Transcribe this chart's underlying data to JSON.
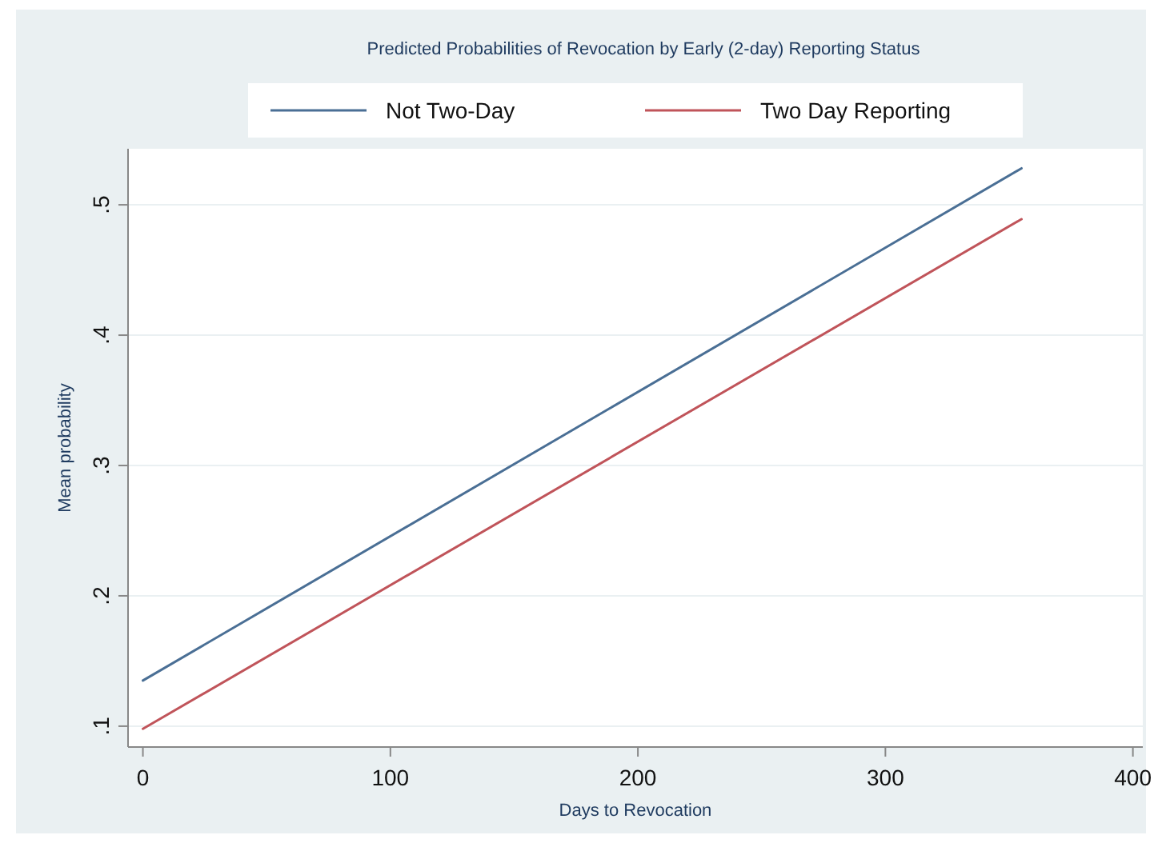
{
  "chart_data": {
    "type": "line",
    "title": "Predicted Probabilities of Revocation by Early (2-day) Reporting Status",
    "xlabel": "Days to Revocation",
    "ylabel": "Mean probability",
    "x": [
      0,
      355
    ],
    "series": [
      {
        "name": "Not Two-Day",
        "color": "#4a6f95",
        "values": [
          0.135,
          0.528
        ]
      },
      {
        "name": "Two Day Reporting",
        "color": "#c0545a",
        "values": [
          0.098,
          0.489
        ]
      }
    ],
    "xlim": [
      -6,
      404
    ],
    "xticks": [
      0,
      100,
      200,
      300,
      400
    ],
    "ylim": [
      0.084,
      0.543
    ],
    "yticks": [
      {
        "value": 0.1,
        "label": ".1"
      },
      {
        "value": 0.2,
        "label": ".2"
      },
      {
        "value": 0.3,
        "label": ".3"
      },
      {
        "value": 0.4,
        "label": ".4"
      },
      {
        "value": 0.5,
        "label": ".5"
      }
    ],
    "grid": "y",
    "legend": "top",
    "marker": "none",
    "line_style": "solid"
  }
}
